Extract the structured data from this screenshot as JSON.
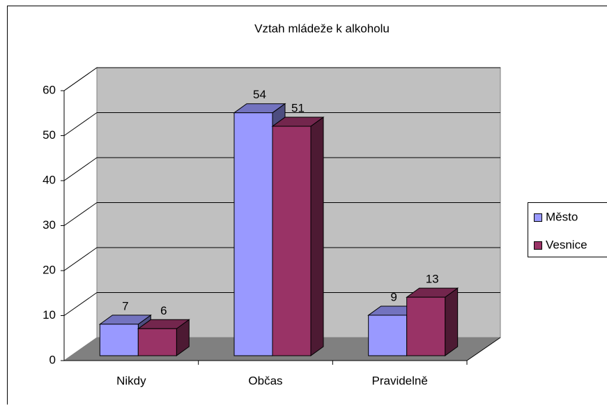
{
  "chart_data": {
    "type": "bar",
    "title": "Vztah mládeže k alkoholu",
    "categories": [
      "Nikdy",
      "Občas",
      "Pravidelně"
    ],
    "series": [
      {
        "name": "Město",
        "color": "#9999ff",
        "values": [
          7,
          54,
          9
        ]
      },
      {
        "name": "Vesnice",
        "color": "#993366",
        "values": [
          6,
          51,
          13
        ]
      }
    ],
    "ylim": [
      0,
      60
    ],
    "yticks": [
      0,
      10,
      20,
      30,
      40,
      50,
      60
    ],
    "grid": true,
    "legend": "right"
  }
}
